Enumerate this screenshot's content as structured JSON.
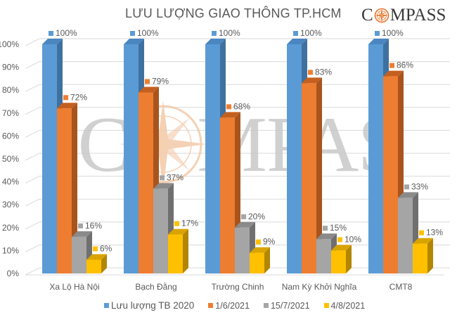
{
  "header": {
    "title": "LƯU LƯỢNG GIAO THÔNG TP.HCM",
    "logo_text_left": "C",
    "logo_text_right": "MPASS",
    "logo_icon": "compass-rose-icon"
  },
  "watermark": {
    "text": "COMPASS",
    "color": "#c8c8c8",
    "rose_color": "#f3c9a8"
  },
  "colors": {
    "blue": "#5b9bd5",
    "blue_dark": "#3f71a0",
    "orange": "#ed7d31",
    "orange_dark": "#a9541c",
    "gray": "#a5a5a5",
    "gray_dark": "#6f6f6f",
    "yellow": "#ffc000",
    "yellow_dark": "#b38600",
    "gridline": "#d9d9d9",
    "text": "#595959"
  },
  "legend": [
    {
      "label": "Lưu lượng TB 2020",
      "color": "#5b9bd5"
    },
    {
      "label": "1/6/2021",
      "color": "#ed7d31"
    },
    {
      "label": "15/7/2021",
      "color": "#a5a5a5"
    },
    {
      "label": "4/8/2021",
      "color": "#ffc000"
    }
  ],
  "chart_data": {
    "type": "bar",
    "style": "3d-clustered-column",
    "title": "LƯU LƯỢNG GIAO THÔNG TP.HCM",
    "xlabel": "",
    "ylabel": "",
    "ylim": [
      0,
      100
    ],
    "yticks": [
      "0%",
      "10%",
      "20%",
      "30%",
      "40%",
      "50%",
      "60%",
      "70%",
      "80%",
      "90%",
      "100%"
    ],
    "grid": true,
    "legend_position": "bottom",
    "categories": [
      "Xa Lộ Hà Nội",
      "Bạch Đằng",
      "Trường Chinh",
      "Nam Kỳ Khởi Nghĩa",
      "CMT8"
    ],
    "series": [
      {
        "name": "Lưu lượng TB 2020",
        "values": [
          100,
          100,
          100,
          100,
          100
        ],
        "labels": [
          "100%",
          "100%",
          "100%",
          "100%",
          "100%"
        ]
      },
      {
        "name": "1/6/2021",
        "values": [
          72,
          79,
          68,
          83,
          86
        ],
        "labels": [
          "72%",
          "79%",
          "68%",
          "83%",
          "86%"
        ]
      },
      {
        "name": "15/7/2021",
        "values": [
          16,
          37,
          20,
          15,
          33
        ],
        "labels": [
          "16%",
          "37%",
          "20%",
          "15%",
          "33%"
        ]
      },
      {
        "name": "4/8/2021",
        "values": [
          6,
          17,
          9,
          10,
          13
        ],
        "labels": [
          "6%",
          "17%",
          "9%",
          "10%",
          "13%"
        ]
      }
    ]
  }
}
